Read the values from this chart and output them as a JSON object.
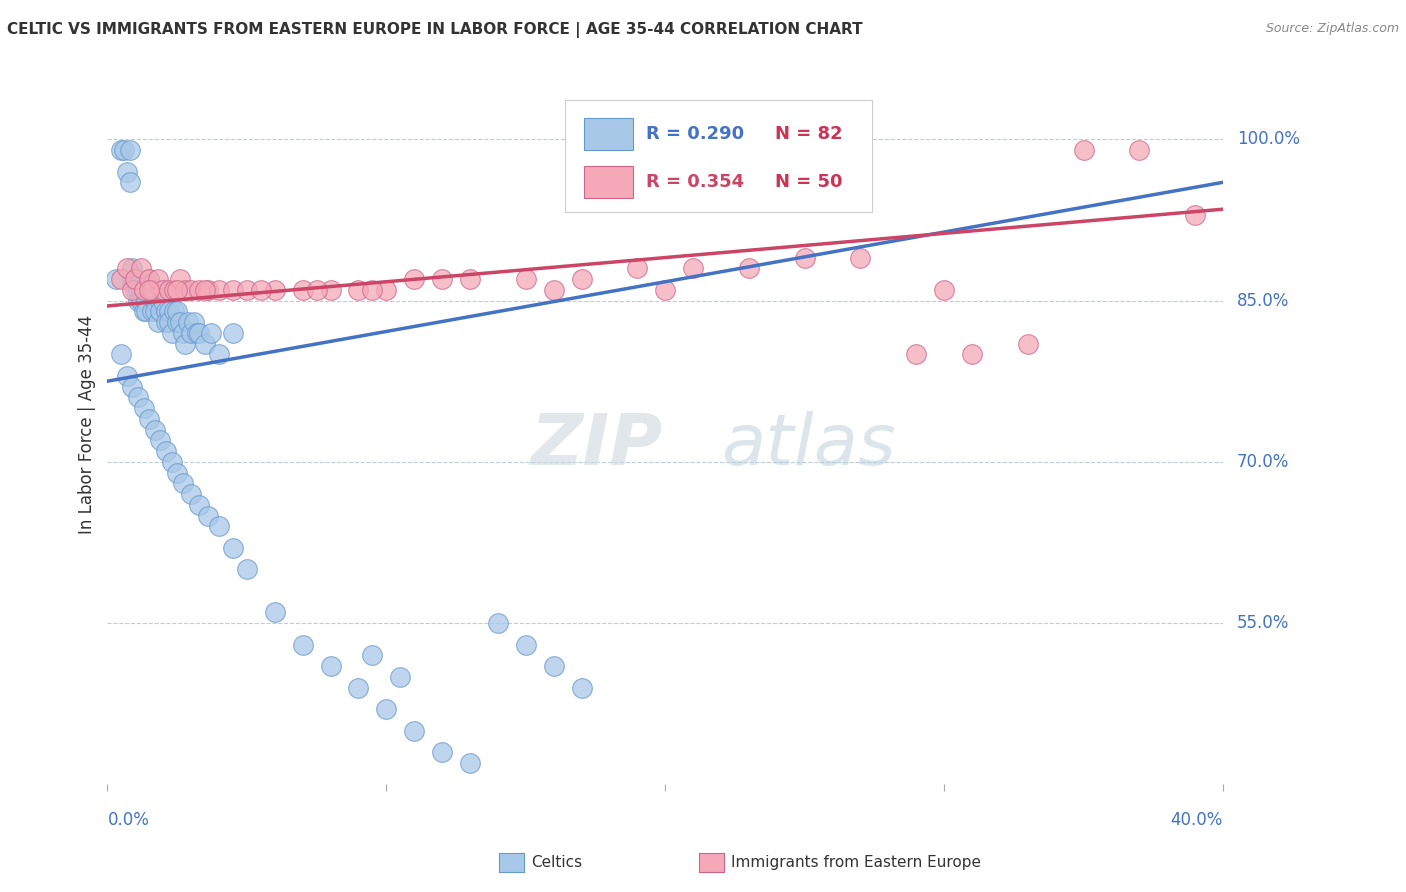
{
  "title": "CELTIC VS IMMIGRANTS FROM EASTERN EUROPE IN LABOR FORCE | AGE 35-44 CORRELATION CHART",
  "source": "Source: ZipAtlas.com",
  "ylabel": "In Labor Force | Age 35-44",
  "ytick_labels": [
    "55.0%",
    "70.0%",
    "85.0%",
    "100.0%"
  ],
  "ytick_values": [
    0.55,
    0.7,
    0.85,
    1.0
  ],
  "xlim": [
    0.0,
    0.4
  ],
  "ylim": [
    0.4,
    1.07
  ],
  "R_celtics": 0.29,
  "N_celtics": 82,
  "R_eastern": 0.354,
  "N_eastern": 50,
  "celtics_color": "#a8c8e8",
  "celtics_edge": "#6699cc",
  "eastern_color": "#f4a8b8",
  "eastern_edge": "#cc6688",
  "line_celtics": "#4472c4",
  "line_eastern": "#cc4466",
  "background_color": "#ffffff",
  "watermark_zip": "ZIP",
  "watermark_atlas": "atlas",
  "celtics_x": [
    0.003,
    0.005,
    0.006,
    0.007,
    0.008,
    0.008,
    0.009,
    0.009,
    0.01,
    0.01,
    0.011,
    0.011,
    0.012,
    0.012,
    0.013,
    0.013,
    0.014,
    0.014,
    0.015,
    0.015,
    0.016,
    0.016,
    0.017,
    0.017,
    0.018,
    0.018,
    0.019,
    0.019,
    0.02,
    0.02,
    0.021,
    0.021,
    0.022,
    0.022,
    0.023,
    0.024,
    0.025,
    0.025,
    0.026,
    0.027,
    0.028,
    0.029,
    0.03,
    0.031,
    0.032,
    0.033,
    0.035,
    0.037,
    0.04,
    0.045,
    0.005,
    0.007,
    0.009,
    0.011,
    0.013,
    0.015,
    0.017,
    0.019,
    0.021,
    0.023,
    0.025,
    0.027,
    0.03,
    0.033,
    0.036,
    0.04,
    0.045,
    0.05,
    0.06,
    0.07,
    0.08,
    0.09,
    0.1,
    0.11,
    0.12,
    0.13,
    0.14,
    0.15,
    0.16,
    0.17,
    0.095,
    0.105
  ],
  "celtics_y": [
    0.87,
    0.99,
    0.99,
    0.97,
    0.96,
    0.99,
    0.87,
    0.88,
    0.87,
    0.86,
    0.86,
    0.85,
    0.86,
    0.85,
    0.84,
    0.86,
    0.85,
    0.84,
    0.86,
    0.87,
    0.84,
    0.86,
    0.85,
    0.84,
    0.86,
    0.83,
    0.85,
    0.84,
    0.86,
    0.85,
    0.84,
    0.83,
    0.84,
    0.83,
    0.82,
    0.84,
    0.83,
    0.84,
    0.83,
    0.82,
    0.81,
    0.83,
    0.82,
    0.83,
    0.82,
    0.82,
    0.81,
    0.82,
    0.8,
    0.82,
    0.8,
    0.78,
    0.77,
    0.76,
    0.75,
    0.74,
    0.73,
    0.72,
    0.71,
    0.7,
    0.69,
    0.68,
    0.67,
    0.66,
    0.65,
    0.64,
    0.62,
    0.6,
    0.56,
    0.53,
    0.51,
    0.49,
    0.47,
    0.45,
    0.43,
    0.42,
    0.55,
    0.53,
    0.51,
    0.49,
    0.52,
    0.5
  ],
  "eastern_x": [
    0.005,
    0.007,
    0.009,
    0.01,
    0.012,
    0.013,
    0.015,
    0.016,
    0.018,
    0.02,
    0.022,
    0.024,
    0.026,
    0.028,
    0.03,
    0.033,
    0.036,
    0.04,
    0.045,
    0.05,
    0.06,
    0.07,
    0.08,
    0.09,
    0.1,
    0.11,
    0.13,
    0.15,
    0.17,
    0.19,
    0.21,
    0.23,
    0.25,
    0.27,
    0.29,
    0.31,
    0.33,
    0.35,
    0.37,
    0.39,
    0.015,
    0.025,
    0.035,
    0.055,
    0.075,
    0.095,
    0.12,
    0.16,
    0.2,
    0.3
  ],
  "eastern_y": [
    0.87,
    0.88,
    0.86,
    0.87,
    0.88,
    0.86,
    0.87,
    0.86,
    0.87,
    0.86,
    0.86,
    0.86,
    0.87,
    0.86,
    0.86,
    0.86,
    0.86,
    0.86,
    0.86,
    0.86,
    0.86,
    0.86,
    0.86,
    0.86,
    0.86,
    0.87,
    0.87,
    0.87,
    0.87,
    0.88,
    0.88,
    0.88,
    0.89,
    0.89,
    0.8,
    0.8,
    0.81,
    0.99,
    0.99,
    0.93,
    0.86,
    0.86,
    0.86,
    0.86,
    0.86,
    0.86,
    0.87,
    0.86,
    0.86,
    0.86
  ],
  "line_celtics_x0": 0.0,
  "line_celtics_y0": 0.775,
  "line_celtics_x1": 0.4,
  "line_celtics_y1": 0.96,
  "line_eastern_x0": 0.0,
  "line_eastern_y0": 0.845,
  "line_eastern_x1": 0.4,
  "line_eastern_y1": 0.935,
  "legend_R1": "R = 0.290",
  "legend_N1": "N = 82",
  "legend_R2": "R = 0.354",
  "legend_N2": "N = 50",
  "bottom_label1": "Celtics",
  "bottom_label2": "Immigrants from Eastern Europe"
}
